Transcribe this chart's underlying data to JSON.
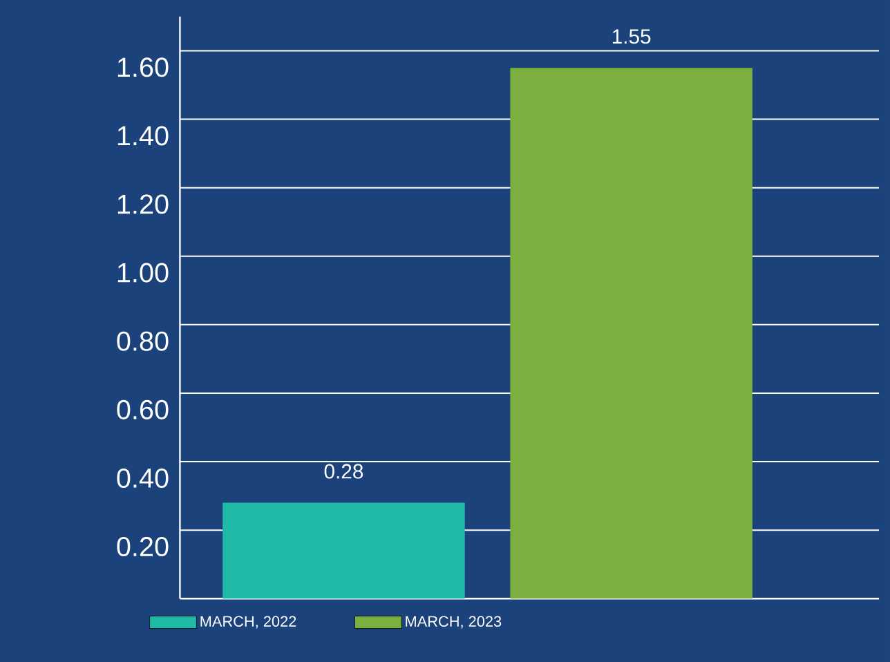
{
  "chart_data": {
    "type": "bar",
    "categories": [
      null
    ],
    "series": [
      {
        "name": "MARCH, 2022",
        "color": "#20bba7",
        "values": [
          0.28
        ]
      },
      {
        "name": "MARCH, 2023",
        "color": "#7bb040",
        "values": [
          1.55
        ]
      }
    ],
    "ylim": [
      0,
      1.7
    ],
    "yticks": [
      {
        "value": 0.2,
        "label": "0.20"
      },
      {
        "value": 0.4,
        "label": "0.40"
      },
      {
        "value": 0.6,
        "label": "0.60"
      },
      {
        "value": 0.8,
        "label": "0.80"
      },
      {
        "value": 1.0,
        "label": "1.00"
      },
      {
        "value": 1.2,
        "label": "1.20"
      },
      {
        "value": 1.4,
        "label": "1.40"
      },
      {
        "value": 1.6,
        "label": "1.60"
      }
    ],
    "grid": "y",
    "legend": "bottom",
    "data_labels": true
  }
}
